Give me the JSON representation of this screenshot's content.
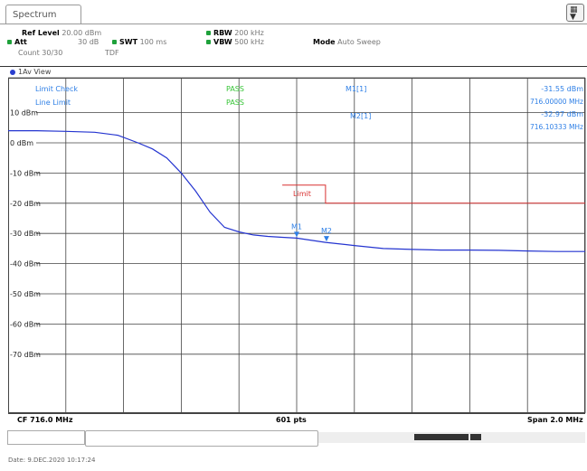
{
  "window": {
    "tab_title": "Spectrum"
  },
  "params": {
    "ref_level_label": "Ref Level",
    "ref_level_value": "20.00 dBm",
    "att_label": "Att",
    "att_value": "30 dB",
    "swt_label": "SWT",
    "swt_value": "100 ms",
    "rbw_label": "RBW",
    "rbw_value": "200 kHz",
    "vbw_label": "VBW",
    "vbw_value": "500 kHz",
    "mode_label": "Mode",
    "mode_value": "Auto Sweep",
    "count_label": "Count 30/30",
    "tdf_label": "TDF"
  },
  "view": {
    "label": "1Av View"
  },
  "info": {
    "limit_check_label": "Limit Check",
    "limit_check_status": "PASS",
    "line_limit_label": "Line Limit",
    "line_limit_status": "PASS",
    "m1_label": "M1[1]",
    "m1_level": "-31.55 dBm",
    "m1_freq": "716.00000 MHz",
    "m2_label": "M2[1]",
    "m2_level": "-32.97 dBm",
    "m2_freq": "716.10333 MHz"
  },
  "plot": {
    "limit_line_label": "Limit",
    "marker_m1": "M1",
    "marker_m2": "M2",
    "trace_color": "#2434d0",
    "limit_color": "#d83030",
    "info_color": "#2e7fe6",
    "pass_color": "#36c436"
  },
  "footer": {
    "cf_label": "CF 716.0 MHz",
    "points_label": "601 pts",
    "span_label": "Span 2.0 MHz"
  },
  "status": {
    "date_line": "Date: 9.DEC.2020 10:17:24"
  },
  "chart_data": {
    "type": "line",
    "title": "",
    "xlabel": "",
    "ylabel": "",
    "ylim": [
      -80,
      20
    ],
    "y_ticks": [
      "10 dBm",
      "0 dBm",
      "-10 dBm",
      "-20 dBm",
      "-30 dBm",
      "-40 dBm",
      "-50 dBm",
      "-60 dBm",
      "-70 dBm"
    ],
    "y_tick_values": [
      10,
      0,
      -10,
      -20,
      -30,
      -40,
      -50,
      -60,
      -70
    ],
    "x_range_mhz": [
      715.0,
      717.0
    ],
    "grid": true,
    "series": [
      {
        "values_x_mhz": [
          715.0,
          715.1,
          715.2,
          715.3,
          715.38,
          715.45,
          715.5,
          715.55,
          715.6,
          715.65,
          715.7,
          715.75,
          715.8,
          715.85,
          715.9,
          715.95,
          716.0,
          716.1,
          716.2,
          716.3,
          716.4,
          716.5,
          716.6,
          716.7,
          716.8,
          716.9,
          717.0
        ],
        "values_y_dbm": [
          4,
          4,
          3.8,
          3.5,
          2.5,
          0,
          -2,
          -5,
          -10,
          -16,
          -23,
          -28,
          -29.5,
          -30.5,
          -31,
          -31.3,
          -31.55,
          -32.97,
          -34,
          -35,
          -35.3,
          -35.5,
          -35.5,
          -35.6,
          -35.8,
          -36,
          -36
        ]
      }
    ],
    "limit_line": {
      "label": "Limit",
      "x_mhz": [
        715.95,
        716.1,
        716.1,
        717.0
      ],
      "y_dbm": [
        -14,
        -14,
        -20,
        -20
      ]
    },
    "markers": [
      {
        "name": "M1",
        "x_mhz": 716.0,
        "y_dbm": -31.55
      },
      {
        "name": "M2",
        "x_mhz": 716.10333,
        "y_dbm": -32.97
      }
    ]
  }
}
